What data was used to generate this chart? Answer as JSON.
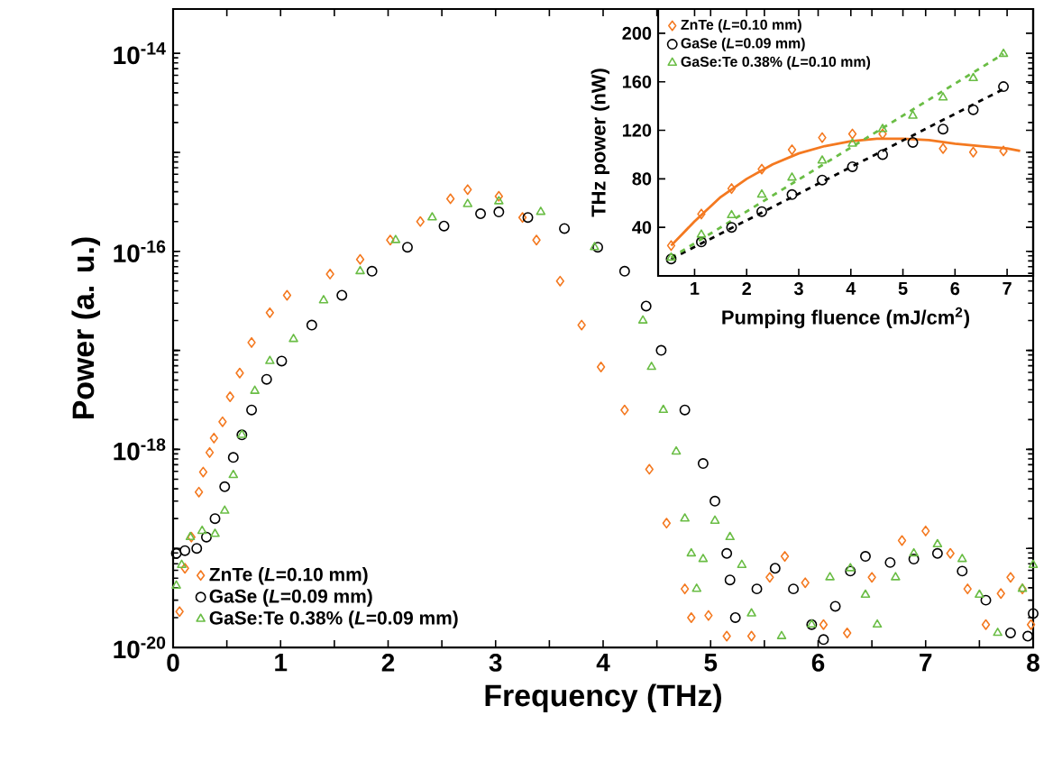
{
  "chart_data": [
    {
      "type": "scatter",
      "xlabel": "Frequency (THz)",
      "ylabel": "Power (a. u.)",
      "log": "y",
      "legend": "bottom left",
      "xlim": [
        0,
        8
      ],
      "ylim": [
        1e-20,
        2.8e-14
      ],
      "xticks": [
        0,
        {
          "value": 0.5,
          "label": null
        },
        1,
        {
          "value": 1.5,
          "label": null
        },
        2,
        {
          "value": 2.5,
          "label": null
        },
        3,
        {
          "value": 3.5,
          "label": null
        },
        4,
        {
          "value": 4.5,
          "label": null
        },
        5,
        {
          "value": 5.5,
          "label": null
        },
        6,
        {
          "value": 6.5,
          "label": null
        },
        7,
        {
          "value": 7.5,
          "label": null
        },
        8
      ],
      "yticks": [
        {
          "value": 1e-20,
          "label": "10$^{-20}$"
        },
        {
          "value": 1e-19,
          "label": null
        },
        {
          "value": 1e-18,
          "label": "10$^{-18}$"
        },
        {
          "value": 1e-17,
          "label": null
        },
        {
          "value": 1e-16,
          "label": "10$^{-16}$"
        },
        {
          "value": 1e-15,
          "label": null
        },
        {
          "value": 1e-14,
          "label": "10$^{-14}$"
        }
      ],
      "series": [
        {
          "name": "ZnTe  (*L*=0.10 mm)",
          "color": "#f47920",
          "marker": "diamond",
          "x": [
            0.06,
            0.11,
            0.17,
            0.24,
            0.28,
            0.34,
            0.38,
            0.46,
            0.53,
            0.62,
            0.73,
            0.9,
            1.06,
            1.46,
            1.74,
            2.02,
            2.3,
            2.58,
            2.74,
            3.03,
            3.25,
            3.38,
            3.6,
            3.8,
            3.98,
            4.2,
            4.43,
            4.59,
            4.76,
            4.82,
            4.98,
            5.15,
            5.38,
            5.55,
            5.69,
            5.88,
            6.05,
            6.27,
            6.5,
            6.78,
            7.0,
            7.23,
            7.39,
            7.56,
            7.7,
            7.79,
            7.9,
            7.98
          ],
          "values": [
            2.3e-20,
            6.3e-20,
            1.3e-19,
            3.7e-19,
            5.9e-19,
            9.3e-19,
            1.3e-18,
            1.9e-18,
            3.4e-18,
            5.9e-18,
            1.2e-17,
            2.4e-17,
            3.6e-17,
            5.9e-17,
            8.3e-17,
            1.3e-16,
            2e-16,
            3.4e-16,
            4.2e-16,
            3.6e-16,
            2.2e-16,
            1.3e-16,
            5e-17,
            1.8e-17,
            6.8e-18,
            2.5e-18,
            6.3e-19,
            1.8e-19,
            3.9e-20,
            2e-20,
            2.1e-20,
            1.3e-20,
            1.3e-20,
            5.1e-20,
            8.3e-20,
            4.5e-20,
            1.7e-20,
            1.4e-20,
            5.1e-20,
            1.2e-19,
            1.5e-19,
            8.9e-20,
            3.9e-20,
            1.7e-20,
            3.5e-20,
            5.1e-20,
            3.9e-20,
            1.7e-20
          ]
        },
        {
          "name": "GaSe (*L*=0.09 mm)",
          "color": "#000000",
          "marker": "circle",
          "x": [
            0.03,
            0.11,
            0.22,
            0.31,
            0.39,
            0.48,
            0.56,
            0.64,
            0.73,
            0.87,
            1.01,
            1.29,
            1.57,
            1.85,
            2.18,
            2.52,
            2.86,
            3.03,
            3.3,
            3.64,
            3.95,
            4.2,
            4.4,
            4.54,
            4.76,
            4.93,
            5.04,
            5.15,
            5.18,
            5.23,
            5.43,
            5.6,
            5.77,
            5.94,
            6.05,
            6.16,
            6.3,
            6.44,
            6.67,
            6.89,
            7.11,
            7.34,
            7.56,
            7.79,
            7.95,
            8.0
          ],
          "values": [
            8.9e-20,
            9.5e-20,
            1e-19,
            1.3e-19,
            2e-19,
            4.2e-19,
            8.3e-19,
            1.4e-18,
            2.5e-18,
            5.1e-18,
            7.8e-18,
            1.8e-17,
            3.6e-17,
            6.3e-17,
            1.1e-16,
            1.8e-16,
            2.4e-16,
            2.5e-16,
            2.2e-16,
            1.7e-16,
            1.1e-16,
            6.3e-17,
            2.8e-17,
            1e-17,
            2.5e-18,
            7.2e-19,
            3e-19,
            8.9e-20,
            4.8e-20,
            2e-20,
            3.9e-20,
            6.3e-20,
            3.9e-20,
            1.7e-20,
            1.2e-20,
            2.6e-20,
            5.9e-20,
            8.3e-20,
            7.2e-20,
            7.8e-20,
            8.9e-20,
            5.9e-20,
            3e-20,
            1.4e-20,
            1.3e-20,
            2.2e-20
          ]
        },
        {
          "name": "GaSe:Te 0.38% (*L*=0.09 mm)",
          "color": "#6abd45",
          "marker": "triangle",
          "x": [
            0.03,
            0.08,
            0.16,
            0.27,
            0.39,
            0.48,
            0.56,
            0.64,
            0.76,
            0.9,
            1.12,
            1.4,
            1.74,
            2.07,
            2.41,
            2.74,
            3.03,
            3.42,
            3.92,
            4.37,
            4.45,
            4.56,
            4.68,
            4.76,
            4.82,
            4.87,
            4.93,
            5.04,
            5.18,
            5.29,
            5.38,
            5.66,
            5.94,
            6.11,
            6.3,
            6.44,
            6.55,
            6.72,
            6.89,
            7.11,
            7.34,
            7.5,
            7.67,
            7.9,
            8.0
          ],
          "values": [
            4.2e-20,
            6.8e-20,
            1.3e-19,
            1.5e-19,
            1.4e-19,
            2.4e-19,
            5.5e-19,
            1.4e-18,
            3.9e-18,
            7.8e-18,
            1.3e-17,
            3.2e-17,
            6.3e-17,
            1.3e-16,
            2.2e-16,
            3e-16,
            3.2e-16,
            2.5e-16,
            1.1e-16,
            2e-17,
            6.8e-18,
            2.5e-18,
            9.5e-19,
            2e-19,
            8.9e-20,
            3.9e-20,
            7.8e-20,
            1.9e-19,
            1.3e-19,
            6.8e-20,
            2.2e-20,
            1.3e-20,
            1.7e-20,
            5.1e-20,
            6.3e-20,
            3.4e-20,
            1.7e-20,
            5.1e-20,
            8.9e-20,
            1.1e-19,
            7.8e-20,
            3.4e-20,
            1.4e-20,
            3.9e-20,
            6.8e-20
          ]
        }
      ]
    },
    {
      "type": "scatter",
      "xlabel": "Pumping fluence (mJ/cm$^{2}$)",
      "ylabel": "THz power (nW)",
      "legend": "top left",
      "xlim": [
        0.3,
        7.5
      ],
      "ylim": [
        0,
        220
      ],
      "xticks": [
        1,
        2,
        3,
        4,
        5,
        6,
        7
      ],
      "yticks": [
        40,
        80,
        120,
        160,
        200
      ],
      "series": [
        {
          "name": "ZnTe  (*L*=0.10 mm)",
          "color": "#f47920",
          "marker": "diamond",
          "x": [
            0.55,
            1.13,
            1.71,
            2.29,
            2.87,
            3.45,
            4.03,
            4.61,
            5.19,
            5.77,
            6.35,
            6.93
          ],
          "values": [
            25,
            51,
            72,
            88,
            104,
            114,
            117,
            117,
            null,
            105,
            102,
            103
          ]
        },
        {
          "name": "GaSe  (*L*=0.09 mm)",
          "color": "#000000",
          "marker": "circle",
          "x": [
            0.55,
            1.13,
            1.71,
            2.29,
            2.87,
            3.45,
            4.03,
            4.61,
            5.19,
            5.77,
            6.35,
            6.93
          ],
          "values": [
            14,
            28,
            40,
            53,
            67,
            79,
            90,
            100,
            110,
            121,
            137,
            156
          ]
        },
        {
          "name": "GaSe:Te 0.38%  (*L*=0.10 mm)",
          "color": "#6abd45",
          "marker": "triangle",
          "x": [
            0.55,
            1.13,
            1.71,
            2.29,
            2.87,
            3.45,
            4.03,
            4.61,
            5.19,
            5.77,
            6.35,
            6.93
          ],
          "values": [
            15,
            34,
            50,
            67,
            81,
            95,
            109,
            121,
            132,
            147,
            163,
            183
          ]
        },
        {
          "type": "line",
          "color": "#f47920",
          "marker": "none",
          "line_style": "solid",
          "x": [
            0.55,
            1.0,
            1.5,
            2.0,
            2.5,
            3.0,
            3.5,
            4.0,
            4.5,
            5.0,
            5.5,
            6.0,
            6.5,
            7.0,
            7.25
          ],
          "values": [
            25,
            45,
            65,
            80,
            92,
            101,
            107,
            111,
            113,
            113,
            112,
            109,
            107,
            105,
            103
          ]
        },
        {
          "type": "line",
          "color": "#000000",
          "marker": "none",
          "line_style": "dashed",
          "x": [
            0.55,
            6.93
          ],
          "values": [
            14,
            154
          ]
        },
        {
          "type": "line",
          "color": "#6abd45",
          "marker": "none",
          "line_style": "dashed",
          "x": [
            0.55,
            6.93
          ],
          "values": [
            15,
            183
          ]
        }
      ]
    }
  ]
}
